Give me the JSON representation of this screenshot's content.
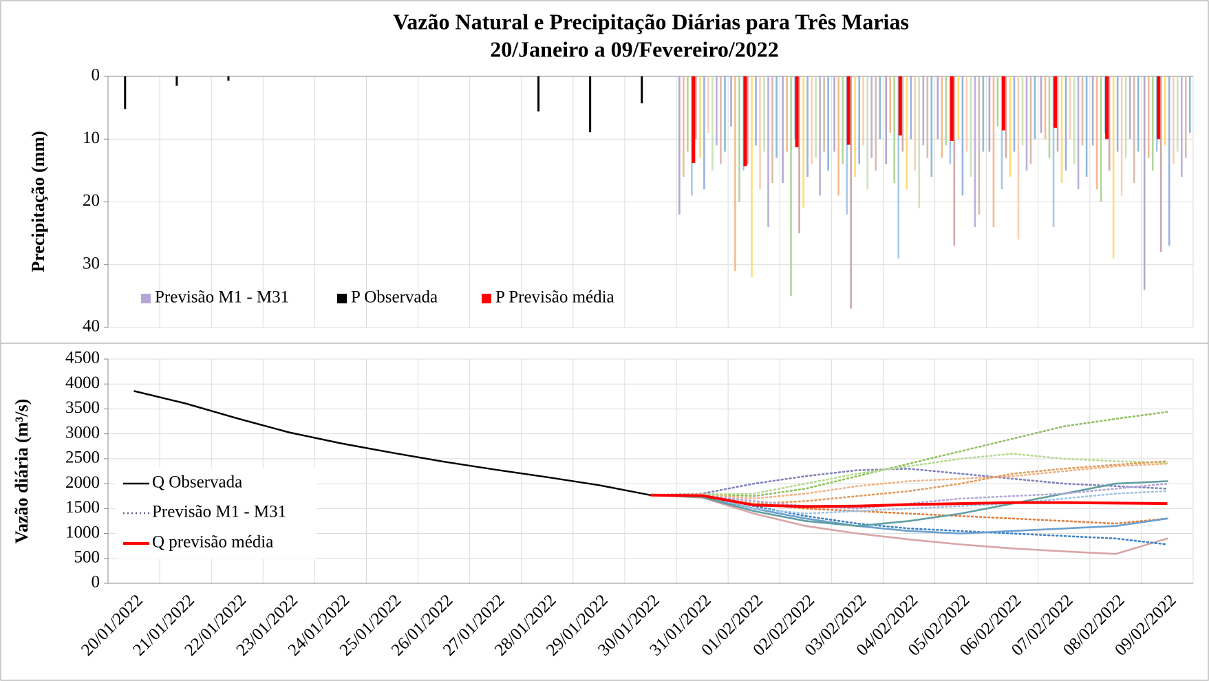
{
  "chart_data": [
    {
      "type": "bar",
      "title": "Vazão Natural e Precipitação Diárias para Três Marias",
      "subtitle": "20/Janeiro a 09/Fevereiro/2022",
      "y_label": "Precipitação (mm)",
      "ylim": [
        0,
        40
      ],
      "yticks": [
        0,
        10,
        20,
        30,
        40
      ],
      "inverted": true,
      "grid": true,
      "legend": "lower left",
      "series": [
        {
          "name": "Previsão M1 - M31",
          "color": "#b4a7d6",
          "member_colors": [
            "#a8a0c8",
            "#f4b183",
            "#a9d18e",
            "#9dc3e6",
            "#c9a0a0",
            "#ffd966",
            "#8faadc",
            "#f8cbad",
            "#c5e0b4",
            "#b4a7d6",
            "#d6b4a7",
            "#7fb3d5"
          ],
          "members": [
            [
              null,
              null,
              null,
              null,
              null,
              null,
              null,
              null,
              null,
              null,
              null,
              22,
              8,
              17,
              12,
              14,
              10,
              12,
              9,
              11,
              34
            ],
            [
              null,
              null,
              null,
              null,
              null,
              null,
              null,
              null,
              null,
              null,
              null,
              16,
              31,
              12,
              19,
              9,
              13,
              24,
              10,
              18,
              13
            ],
            [
              null,
              null,
              null,
              null,
              null,
              null,
              null,
              null,
              null,
              null,
              null,
              12,
              20,
              35,
              14,
              17,
              11,
              8,
              13,
              20,
              15
            ],
            [
              null,
              null,
              null,
              null,
              null,
              null,
              null,
              null,
              null,
              null,
              null,
              19,
              15,
              10,
              22,
              29,
              14,
              18,
              24,
              9,
              12
            ],
            [
              null,
              null,
              null,
              null,
              null,
              null,
              null,
              null,
              null,
              null,
              null,
              10,
              14,
              25,
              37,
              12,
              27,
              13,
              12,
              15,
              28
            ],
            [
              null,
              null,
              null,
              null,
              null,
              null,
              null,
              null,
              null,
              null,
              null,
              13,
              32,
              21,
              16,
              18,
              10,
              16,
              17,
              29,
              11
            ],
            [
              null,
              null,
              null,
              null,
              null,
              null,
              null,
              null,
              null,
              null,
              null,
              18,
              11,
              16,
              14,
              10,
              19,
              12,
              15,
              12,
              27
            ],
            [
              null,
              null,
              null,
              null,
              null,
              null,
              null,
              null,
              null,
              null,
              null,
              9,
              18,
              14,
              11,
              15,
              12,
              26,
              10,
              19,
              14
            ],
            [
              null,
              null,
              null,
              null,
              null,
              null,
              null,
              null,
              null,
              null,
              null,
              15,
              12,
              13,
              18,
              21,
              16,
              11,
              14,
              13,
              12
            ],
            [
              null,
              null,
              null,
              null,
              null,
              null,
              null,
              null,
              null,
              null,
              null,
              11,
              24,
              19,
              13,
              11,
              24,
              15,
              18,
              10,
              16
            ],
            [
              null,
              null,
              null,
              null,
              null,
              null,
              null,
              null,
              null,
              null,
              null,
              14,
              17,
              12,
              15,
              13,
              22,
              14,
              11,
              17,
              13
            ],
            [
              null,
              null,
              null,
              null,
              null,
              null,
              null,
              null,
              null,
              null,
              null,
              12,
              13,
              15,
              10,
              16,
              12,
              10,
              16,
              12,
              9
            ]
          ]
        },
        {
          "name": "P Observada",
          "color": "#000000",
          "values": [
            5.2,
            1.5,
            0.7,
            0,
            0,
            0,
            0,
            0,
            5.6,
            8.9,
            4.3,
            null,
            null,
            null,
            null,
            null,
            null,
            null,
            null,
            null,
            null
          ]
        },
        {
          "name": "P Previsão média",
          "color": "#ff0000",
          "values": [
            null,
            null,
            null,
            null,
            null,
            null,
            null,
            null,
            null,
            null,
            null,
            13.8,
            14.3,
            11.3,
            10.9,
            9.4,
            10.3,
            8.6,
            8.2,
            10,
            10
          ]
        }
      ]
    },
    {
      "type": "line",
      "y_label": "Vazão diária (m³/s)",
      "ylim": [
        0,
        4500
      ],
      "yticks": [
        0,
        500,
        1000,
        1500,
        2000,
        2500,
        3000,
        3500,
        4000,
        4500
      ],
      "grid": true,
      "legend": "center left",
      "categories": [
        "20/01/2022",
        "21/01/2022",
        "22/01/2022",
        "23/01/2022",
        "24/01/2022",
        "25/01/2022",
        "26/01/2022",
        "27/01/2022",
        "28/01/2022",
        "29/01/2022",
        "30/01/2022",
        "31/01/2022",
        "01/02/2022",
        "02/02/2022",
        "03/02/2022",
        "04/02/2022",
        "05/02/2022",
        "06/02/2022",
        "07/02/2022",
        "08/02/2022",
        "09/02/2022"
      ],
      "series": [
        {
          "name": "Q Observada",
          "color": "#000000",
          "values": [
            3860,
            3610,
            3310,
            3030,
            2810,
            2620,
            2440,
            2280,
            2130,
            1970,
            1770,
            null,
            null,
            null,
            null,
            null,
            null,
            null,
            null,
            null,
            null
          ]
        },
        {
          "name": "Previsão M1 - M31",
          "color": "#5a5a9a",
          "member_colors": [
            "#8fbf5f",
            "#e07b39",
            "#d9a5a5",
            "#7f7fbf",
            "#3b7fc4",
            "#f4b183",
            "#6aa0d0",
            "#b5d98f",
            "#e39b5b",
            "#9dc3e6",
            "#5f9ea0",
            "#b4a7d6"
          ],
          "members": [
            [
              null,
              null,
              null,
              null,
              null,
              null,
              null,
              null,
              null,
              null,
              1770,
              1800,
              1750,
              1900,
              2150,
              2400,
              2650,
              2900,
              3150,
              3300,
              3440
            ],
            [
              null,
              null,
              null,
              null,
              null,
              null,
              null,
              null,
              null,
              null,
              1770,
              1750,
              1600,
              1500,
              1450,
              1400,
              1350,
              1300,
              1250,
              1200,
              1300
            ],
            [
              null,
              null,
              null,
              null,
              null,
              null,
              null,
              null,
              null,
              null,
              1770,
              1720,
              1400,
              1150,
              1000,
              880,
              780,
              700,
              640,
              590,
              900
            ],
            [
              null,
              null,
              null,
              null,
              null,
              null,
              null,
              null,
              null,
              null,
              1770,
              1800,
              2000,
              2150,
              2270,
              2300,
              2200,
              2100,
              2000,
              1950,
              1900
            ],
            [
              null,
              null,
              null,
              null,
              null,
              null,
              null,
              null,
              null,
              null,
              1770,
              1760,
              1550,
              1350,
              1200,
              1100,
              1050,
              1000,
              950,
              900,
              780
            ],
            [
              null,
              null,
              null,
              null,
              null,
              null,
              null,
              null,
              null,
              null,
              1770,
              1790,
              1700,
              1800,
              1950,
              2050,
              2100,
              2150,
              2250,
              2350,
              2400
            ],
            [
              null,
              null,
              null,
              null,
              null,
              null,
              null,
              null,
              null,
              null,
              1770,
              1740,
              1500,
              1300,
              1150,
              1050,
              1000,
              1050,
              1100,
              1150,
              1300
            ],
            [
              null,
              null,
              null,
              null,
              null,
              null,
              null,
              null,
              null,
              null,
              1770,
              1780,
              1800,
              2000,
              2200,
              2350,
              2500,
              2600,
              2500,
              2450,
              2420
            ],
            [
              null,
              null,
              null,
              null,
              null,
              null,
              null,
              null,
              null,
              null,
              1770,
              1750,
              1600,
              1650,
              1750,
              1850,
              2000,
              2200,
              2300,
              2380,
              2450
            ],
            [
              null,
              null,
              null,
              null,
              null,
              null,
              null,
              null,
              null,
              null,
              1770,
              1760,
              1500,
              1400,
              1450,
              1500,
              1550,
              1600,
              1700,
              1800,
              1850
            ],
            [
              null,
              null,
              null,
              null,
              null,
              null,
              null,
              null,
              null,
              null,
              1770,
              1730,
              1450,
              1250,
              1150,
              1250,
              1400,
              1600,
              1800,
              2000,
              2050
            ],
            [
              null,
              null,
              null,
              null,
              null,
              null,
              null,
              null,
              null,
              null,
              1770,
              1770,
              1650,
              1550,
              1500,
              1600,
              1700,
              1750,
              1800,
              1900,
              2000
            ]
          ]
        },
        {
          "name": "Q previsão média",
          "color": "#ff0000",
          "values": [
            null,
            null,
            null,
            null,
            null,
            null,
            null,
            null,
            null,
            null,
            1770,
            1760,
            1570,
            1540,
            1550,
            1580,
            1600,
            1620,
            1620,
            1610,
            1600
          ]
        }
      ]
    }
  ]
}
